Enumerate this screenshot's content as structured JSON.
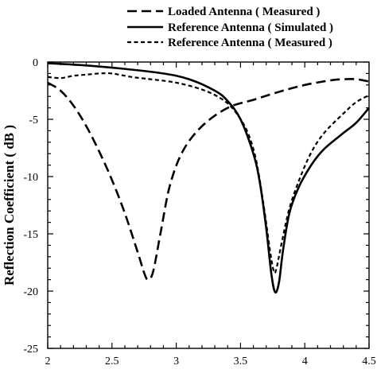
{
  "chart_data": {
    "type": "line",
    "title": "",
    "xlabel": "",
    "ylabel": "Reflection Coefficient ( dB )",
    "xlim": [
      2,
      4.5
    ],
    "ylim": [
      -25,
      0
    ],
    "xticks": [
      "2",
      "2.5",
      "3",
      "3.5",
      "4",
      "4.5"
    ],
    "yticks": [
      "0",
      "-5",
      "-10",
      "-15",
      "-20",
      "-25"
    ],
    "grid": false,
    "legend_position": "top-right, above plot",
    "series": [
      {
        "name": "Loaded Antenna ( Measured )",
        "style": "long-dash",
        "points": [
          [
            2.0,
            -1.8
          ],
          [
            2.1,
            -2.5
          ],
          [
            2.2,
            -3.8
          ],
          [
            2.3,
            -5.6
          ],
          [
            2.4,
            -7.8
          ],
          [
            2.5,
            -10.3
          ],
          [
            2.6,
            -13.2
          ],
          [
            2.7,
            -16.6
          ],
          [
            2.75,
            -18.4
          ],
          [
            2.78,
            -19.0
          ],
          [
            2.82,
            -18.3
          ],
          [
            2.88,
            -14.8
          ],
          [
            2.95,
            -10.8
          ],
          [
            3.05,
            -7.8
          ],
          [
            3.2,
            -5.6
          ],
          [
            3.4,
            -4.0
          ],
          [
            3.6,
            -3.3
          ],
          [
            3.8,
            -2.6
          ],
          [
            4.0,
            -2.0
          ],
          [
            4.2,
            -1.6
          ],
          [
            4.3,
            -1.5
          ],
          [
            4.4,
            -1.5
          ],
          [
            4.5,
            -1.7
          ]
        ]
      },
      {
        "name": "Reference Antenna ( Simulated )",
        "style": "solid",
        "points": [
          [
            2.0,
            -0.1
          ],
          [
            2.3,
            -0.3
          ],
          [
            2.6,
            -0.6
          ],
          [
            2.9,
            -1.0
          ],
          [
            3.1,
            -1.5
          ],
          [
            3.3,
            -2.5
          ],
          [
            3.4,
            -3.4
          ],
          [
            3.5,
            -5.0
          ],
          [
            3.6,
            -8.0
          ],
          [
            3.65,
            -10.5
          ],
          [
            3.7,
            -14.5
          ],
          [
            3.74,
            -18.5
          ],
          [
            3.77,
            -20.1
          ],
          [
            3.8,
            -19.2
          ],
          [
            3.83,
            -16.5
          ],
          [
            3.88,
            -13.2
          ],
          [
            3.95,
            -11.0
          ],
          [
            4.05,
            -9.0
          ],
          [
            4.15,
            -7.6
          ],
          [
            4.3,
            -6.2
          ],
          [
            4.4,
            -5.3
          ],
          [
            4.5,
            -4.0
          ]
        ]
      },
      {
        "name": "Reference Antenna ( Measured )",
        "style": "short-dash",
        "points": [
          [
            2.0,
            -1.3
          ],
          [
            2.1,
            -1.4
          ],
          [
            2.2,
            -1.2
          ],
          [
            2.3,
            -1.1
          ],
          [
            2.4,
            -1.0
          ],
          [
            2.5,
            -1.0
          ],
          [
            2.65,
            -1.3
          ],
          [
            2.8,
            -1.5
          ],
          [
            3.0,
            -1.8
          ],
          [
            3.2,
            -2.4
          ],
          [
            3.35,
            -3.2
          ],
          [
            3.45,
            -4.2
          ],
          [
            3.55,
            -6.0
          ],
          [
            3.62,
            -8.5
          ],
          [
            3.68,
            -12.5
          ],
          [
            3.73,
            -16.5
          ],
          [
            3.76,
            -18.3
          ],
          [
            3.78,
            -18.0
          ],
          [
            3.82,
            -15.8
          ],
          [
            3.88,
            -12.8
          ],
          [
            3.96,
            -10.2
          ],
          [
            4.05,
            -7.9
          ],
          [
            4.15,
            -6.2
          ],
          [
            4.3,
            -4.5
          ],
          [
            4.4,
            -3.5
          ],
          [
            4.5,
            -2.9
          ]
        ]
      }
    ]
  }
}
